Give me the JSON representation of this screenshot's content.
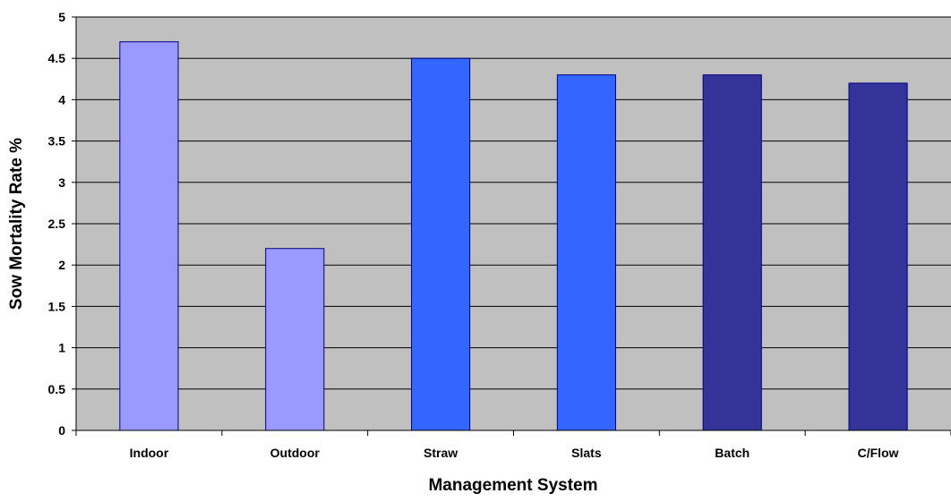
{
  "chart_data": {
    "type": "bar",
    "title": "",
    "xlabel": "Management System",
    "ylabel": "Sow Mortality Rate %",
    "categories": [
      "Indoor",
      "Outdoor",
      "Straw",
      "Slats",
      "Batch",
      "C/Flow"
    ],
    "values": [
      4.7,
      2.2,
      4.5,
      4.3,
      4.3,
      4.2
    ],
    "bar_colors": [
      "#9999ff",
      "#9999ff",
      "#3366ff",
      "#3366ff",
      "#333399",
      "#333399"
    ],
    "bar_edge_color": "#000080",
    "plot_background": "#c0c0c0",
    "ylim": [
      0,
      5
    ],
    "yticks": [
      "0",
      "0.5",
      "1",
      "1.5",
      "2",
      "2.5",
      "3",
      "3.5",
      "4",
      "4.5",
      "5"
    ],
    "grid": true,
    "legend": "none"
  }
}
